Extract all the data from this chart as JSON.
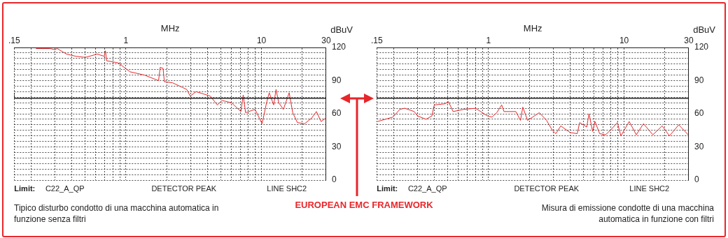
{
  "chart_data": [
    {
      "type": "line",
      "xlabel": "MHz",
      "ylabel": "dBuV",
      "log": "x",
      "xlim": [
        0.15,
        30
      ],
      "ylim": [
        0,
        120
      ],
      "grid": true,
      "marker": "none",
      "xticks": [
        {
          "value": 0.15,
          "label": ".15"
        },
        {
          "value": 0.2,
          "label": null
        },
        {
          "value": 0.3,
          "label": null
        },
        {
          "value": 0.4,
          "label": null
        },
        {
          "value": 0.5,
          "label": null
        },
        {
          "value": 0.6,
          "label": null
        },
        {
          "value": 0.7,
          "label": null
        },
        {
          "value": 0.8,
          "label": null
        },
        {
          "value": 0.9,
          "label": null
        },
        1,
        {
          "value": 2,
          "label": null
        },
        {
          "value": 3,
          "label": null
        },
        {
          "value": 4,
          "label": null
        },
        {
          "value": 5,
          "label": null
        },
        {
          "value": 6,
          "label": null
        },
        {
          "value": 7,
          "label": null
        },
        {
          "value": 8,
          "label": null
        },
        {
          "value": 9,
          "label": null
        },
        10,
        {
          "value": 20,
          "label": null
        },
        30
      ],
      "yticks": [
        0,
        {
          "value": 5,
          "label": null
        },
        {
          "value": 10,
          "label": null
        },
        {
          "value": 15,
          "label": null
        },
        {
          "value": 20,
          "label": null
        },
        {
          "value": 25,
          "label": null
        },
        30,
        {
          "value": 35,
          "label": null
        },
        {
          "value": 40,
          "label": null
        },
        {
          "value": 45,
          "label": null
        },
        {
          "value": 50,
          "label": null
        },
        {
          "value": 55,
          "label": null
        },
        60,
        {
          "value": 65,
          "label": null
        },
        {
          "value": 70,
          "label": null
        },
        {
          "value": 75,
          "label": null
        },
        {
          "value": 80,
          "label": null
        },
        {
          "value": 85,
          "label": null
        },
        90,
        {
          "value": 95,
          "label": null
        },
        {
          "value": 100,
          "label": null
        },
        {
          "value": 105,
          "label": null
        },
        {
          "value": 110,
          "label": null
        },
        {
          "value": 115,
          "label": null
        },
        120
      ],
      "annotations": [
        "Limit:",
        "C22_A_QP",
        "DETECTOR PEAK",
        "LINE SHC2",
        "Tipico disturbo condotto di una macchina automatica in funzione senza filtri",
        "EUROPEAN EMC FRAMEWORK"
      ],
      "series": [
        {
          "type": "line",
          "color": "#e8262a",
          "x": [
            0.217,
            0.249,
            0.276,
            0.299,
            0.311,
            0.365,
            0.428,
            0.502,
            0.614,
            0.692,
            0.706,
            0.72,
            0.88,
            1.07,
            1.37,
            1.74,
            1.79,
            1.88,
            1.92,
            2.21,
            2.81,
            2.98,
            3.29,
            4.19,
            4.72,
            5.12,
            6.0,
            7.05,
            7.33,
            7.63,
            8.96,
            10.1,
            10.9,
            11.4,
            12.3,
            12.8,
            13.4,
            14.5,
            16.0,
            17.0,
            18.4,
            20.8,
            23.4,
            25.4,
            27.5,
            29.8
          ],
          "values": [
            119,
            119,
            119,
            118,
            119,
            114,
            112,
            111,
            114,
            112,
            117,
            108,
            106,
            98,
            95,
            90,
            102,
            101,
            89,
            88,
            82,
            76,
            80,
            76,
            68,
            72,
            70,
            62,
            77,
            61,
            64,
            51,
            70,
            79,
            68,
            82,
            70,
            64,
            79,
            61,
            52,
            51,
            56,
            62,
            53,
            56
          ]
        },
        {
          "type": "step",
          "color": "#000000",
          "x": [
            0.15,
            0.5,
            30
          ],
          "values": [
            79,
            74,
            74
          ]
        }
      ]
    },
    {
      "type": "line",
      "xlabel": "MHz",
      "ylabel": "dBuV",
      "log": "x",
      "xlim": [
        0.15,
        30
      ],
      "ylim": [
        0,
        120
      ],
      "grid": true,
      "marker": "none",
      "xticks": [
        {
          "value": 0.15,
          "label": ".15"
        },
        {
          "value": 0.2,
          "label": null
        },
        {
          "value": 0.3,
          "label": null
        },
        {
          "value": 0.4,
          "label": null
        },
        {
          "value": 0.5,
          "label": null
        },
        {
          "value": 0.6,
          "label": null
        },
        {
          "value": 0.7,
          "label": null
        },
        {
          "value": 0.8,
          "label": null
        },
        {
          "value": 0.9,
          "label": null
        },
        1,
        {
          "value": 2,
          "label": null
        },
        {
          "value": 3,
          "label": null
        },
        {
          "value": 4,
          "label": null
        },
        {
          "value": 5,
          "label": null
        },
        {
          "value": 6,
          "label": null
        },
        {
          "value": 7,
          "label": null
        },
        {
          "value": 8,
          "label": null
        },
        {
          "value": 9,
          "label": null
        },
        10,
        {
          "value": 20,
          "label": null
        },
        30
      ],
      "yticks": [
        0,
        {
          "value": 5,
          "label": null
        },
        {
          "value": 10,
          "label": null
        },
        {
          "value": 15,
          "label": null
        },
        {
          "value": 20,
          "label": null
        },
        {
          "value": 25,
          "label": null
        },
        30,
        {
          "value": 35,
          "label": null
        },
        {
          "value": 40,
          "label": null
        },
        {
          "value": 45,
          "label": null
        },
        {
          "value": 50,
          "label": null
        },
        {
          "value": 55,
          "label": null
        },
        60,
        {
          "value": 65,
          "label": null
        },
        {
          "value": 70,
          "label": null
        },
        {
          "value": 75,
          "label": null
        },
        {
          "value": 80,
          "label": null
        },
        {
          "value": 85,
          "label": null
        },
        90,
        {
          "value": 95,
          "label": null
        },
        {
          "value": 100,
          "label": null
        },
        {
          "value": 105,
          "label": null
        },
        {
          "value": 110,
          "label": null
        },
        {
          "value": 115,
          "label": null
        },
        120
      ],
      "annotations": [
        "Limit:",
        "C22_A_QP",
        "DETECTOR PEAK",
        "LINE SHC2",
        "Misura di emissione condotte di una macchina automatica in funzione con filtri"
      ],
      "series": [
        {
          "type": "line",
          "color": "#e8262a",
          "x": [
            0.152,
            0.197,
            0.222,
            0.241,
            0.283,
            0.3,
            0.346,
            0.382,
            0.398,
            0.477,
            0.506,
            0.548,
            0.657,
            0.803,
            0.981,
            1.06,
            1.15,
            1.25,
            1.3,
            1.59,
            1.72,
            1.79,
            1.94,
            2.37,
            2.68,
            2.96,
            3.14,
            3.41,
            4.0,
            4.51,
            4.7,
            5.3,
            5.51,
            5.86,
            6.1,
            6.6,
            7.3,
            7.91,
            8.92,
            9.47,
            10.9,
            12.3,
            13.9,
            16.3,
            19.1,
            21.6,
            25.3,
            29.7
          ],
          "values": [
            53,
            57,
            64,
            65,
            62,
            58,
            55,
            58,
            68,
            69,
            71,
            62,
            64,
            65,
            58,
            57,
            61,
            68,
            62,
            62,
            54,
            66,
            54,
            61,
            54,
            45,
            42,
            49,
            43,
            42,
            52,
            48,
            60,
            44,
            53,
            42,
            41,
            45,
            52,
            40,
            53,
            41,
            51,
            41,
            49,
            40,
            50,
            41
          ]
        },
        {
          "type": "step",
          "color": "#000000",
          "x": [
            0.15,
            0.5,
            30
          ],
          "values": [
            79,
            74,
            74
          ]
        }
      ]
    }
  ]
}
